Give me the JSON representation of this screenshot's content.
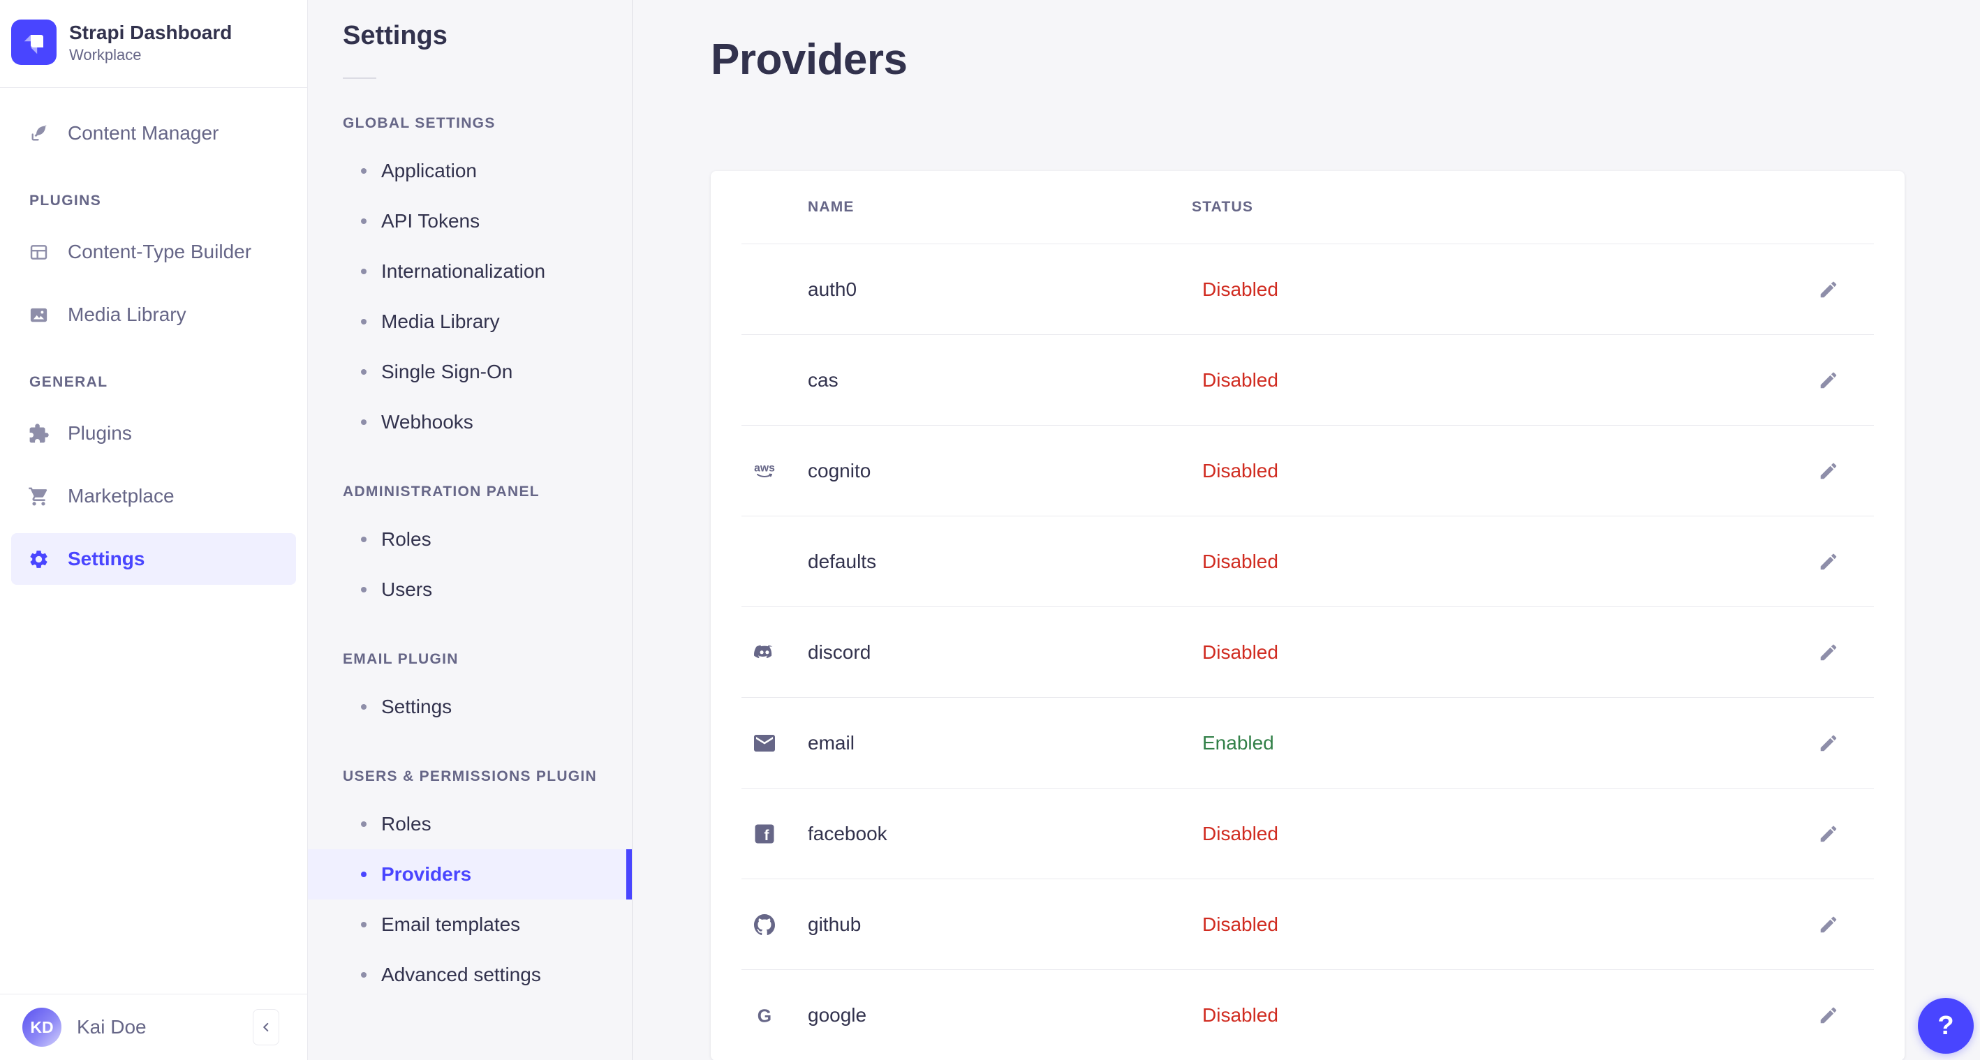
{
  "sidebar": {
    "brand": {
      "title": "Strapi Dashboard",
      "subtitle": "Workplace",
      "logo_icon": "strapi-logo-icon"
    },
    "primary_items": [
      {
        "label": "Content Manager",
        "icon": "feather-pen-icon",
        "selected": false
      }
    ],
    "sections": [
      {
        "header": "Plugins",
        "items": [
          {
            "label": "Content-Type Builder",
            "icon": "layout-grid-icon",
            "selected": false
          },
          {
            "label": "Media Library",
            "icon": "image-icon",
            "selected": false
          }
        ]
      },
      {
        "header": "General",
        "items": [
          {
            "label": "Plugins",
            "icon": "puzzle-icon",
            "selected": false
          },
          {
            "label": "Marketplace",
            "icon": "cart-icon",
            "selected": false
          },
          {
            "label": "Settings",
            "icon": "gear-icon",
            "selected": true
          }
        ]
      }
    ],
    "footer": {
      "user_name": "Kai Doe",
      "avatar_initials": "KD",
      "collapse_icon": "chevron-left-icon"
    }
  },
  "subnav": {
    "title": "Settings",
    "sections": [
      {
        "header": "Global Settings",
        "items": [
          {
            "label": "Application",
            "selected": false
          },
          {
            "label": "API Tokens",
            "selected": false
          },
          {
            "label": "Internationalization",
            "selected": false
          },
          {
            "label": "Media Library",
            "selected": false
          },
          {
            "label": "Single Sign-On",
            "selected": false
          },
          {
            "label": "Webhooks",
            "selected": false
          }
        ]
      },
      {
        "header": "Administration panel",
        "items": [
          {
            "label": "Roles",
            "selected": false
          },
          {
            "label": "Users",
            "selected": false
          }
        ]
      },
      {
        "header": "Email plugin",
        "items": [
          {
            "label": "Settings",
            "selected": false
          }
        ]
      },
      {
        "header": "Users & Permissions plugin",
        "items": [
          {
            "label": "Roles",
            "selected": false
          },
          {
            "label": "Providers",
            "selected": true
          },
          {
            "label": "Email templates",
            "selected": false
          },
          {
            "label": "Advanced settings",
            "selected": false
          }
        ]
      }
    ]
  },
  "main": {
    "title": "Providers",
    "table": {
      "columns": [
        "Name",
        "Status"
      ],
      "edit_icon": "pencil-icon",
      "rows": [
        {
          "name": "auth0",
          "icon": null,
          "status": "Disabled"
        },
        {
          "name": "cas",
          "icon": null,
          "status": "Disabled"
        },
        {
          "name": "cognito",
          "icon": "aws-icon",
          "status": "Disabled"
        },
        {
          "name": "defaults",
          "icon": null,
          "status": "Disabled"
        },
        {
          "name": "discord",
          "icon": "discord-icon",
          "status": "Disabled"
        },
        {
          "name": "email",
          "icon": "email-icon",
          "status": "Enabled"
        },
        {
          "name": "facebook",
          "icon": "facebook-icon",
          "status": "Disabled"
        },
        {
          "name": "github",
          "icon": "github-icon",
          "status": "Disabled"
        },
        {
          "name": "google",
          "icon": "google-icon",
          "status": "Disabled"
        }
      ]
    }
  },
  "help": {
    "label": "?"
  },
  "colors": {
    "accent": "#4945ff",
    "disabled": "#d02b20",
    "enabled": "#328048"
  }
}
